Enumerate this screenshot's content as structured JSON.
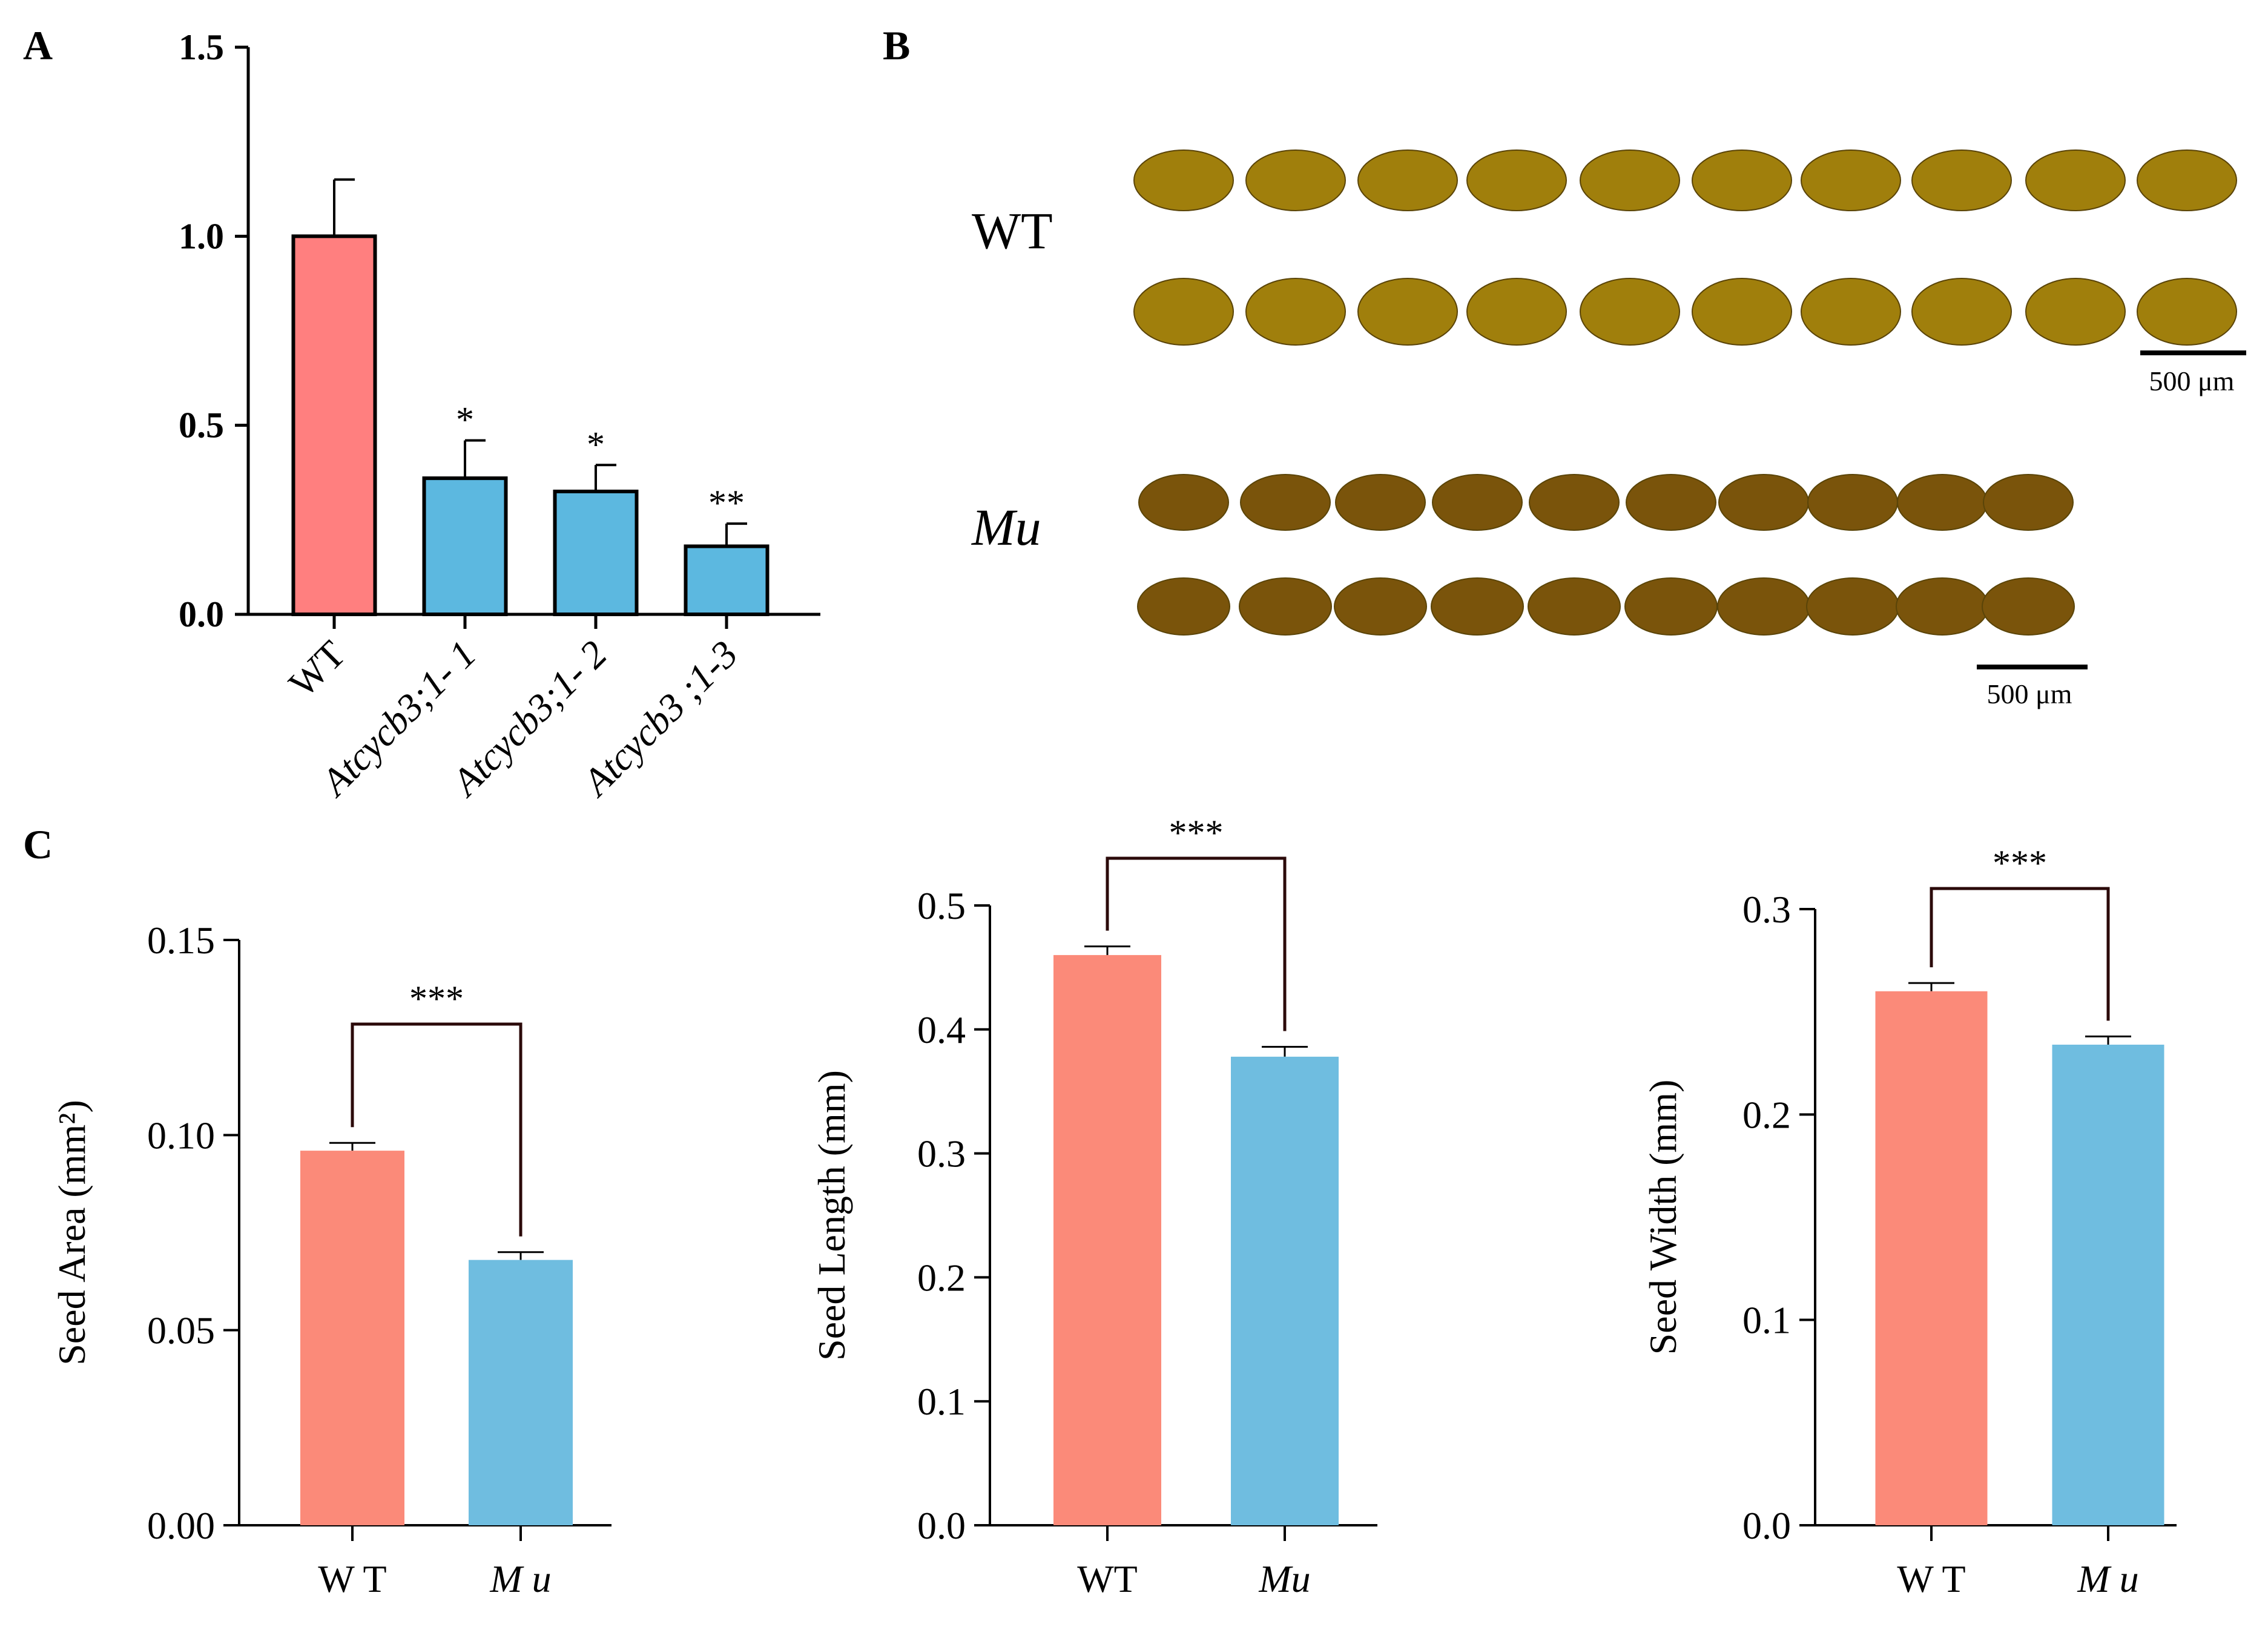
{
  "panels": {
    "a": "A",
    "b": "B",
    "c": "C"
  },
  "colors": {
    "wt_bar": "#ff7f7f",
    "mutant_bar": "#5cb8e0",
    "wt_bar_c": "#fb8a79",
    "mu_bar_c": "#6fbde0",
    "seed": "#a07f0c",
    "seed_dark": "#7a540b"
  },
  "photo": {
    "wt_label": "WT",
    "mu_label": "Mu",
    "wt_scale": "500 μm",
    "mu_scale": "500 μm"
  },
  "chart_data": [
    {
      "id": "A",
      "type": "bar",
      "title": "",
      "xlabel": "",
      "ylabel": "",
      "categories": [
        "WT",
        "Atcycb3;1- 1",
        "Atcycb3;1- 2",
        "Atcycb3 ;1-3"
      ],
      "values": [
        1.0,
        0.36,
        0.325,
        0.18
      ],
      "errors": [
        0.15,
        0.1,
        0.07,
        0.06
      ],
      "significance": [
        "",
        "*",
        "*",
        "**"
      ],
      "ylim": [
        0,
        1.5
      ],
      "yticks": [
        "0.0",
        "0.5",
        "1.0",
        "1.5"
      ],
      "bar_colors": [
        "#ff7f7f",
        "#5cb8e0",
        "#5cb8e0",
        "#5cb8e0"
      ],
      "grid": false
    },
    {
      "id": "C1",
      "type": "bar",
      "title": "",
      "xlabel": "",
      "ylabel": "Seed Area (mm²)",
      "categories": [
        "W T",
        "M u"
      ],
      "values": [
        0.096,
        0.068
      ],
      "errors": [
        0.002,
        0.002
      ],
      "comparison": "***",
      "ylim": [
        0,
        0.15
      ],
      "yticks": [
        "0.00",
        "0.05",
        "0.10",
        "0.15"
      ],
      "bar_colors": [
        "#fb8a79",
        "#6fbde0"
      ],
      "grid": false
    },
    {
      "id": "C2",
      "type": "bar",
      "title": "",
      "xlabel": "",
      "ylabel": "Seed Length (mm)",
      "categories": [
        "WT",
        "Mu"
      ],
      "values": [
        0.46,
        0.378
      ],
      "errors": [
        0.007,
        0.008
      ],
      "comparison": "***",
      "ylim": [
        0,
        0.5
      ],
      "yticks": [
        "0.0",
        "0.1",
        "0.2",
        "0.3",
        "0.4",
        "0.5"
      ],
      "bar_colors": [
        "#fb8a79",
        "#6fbde0"
      ],
      "grid": false
    },
    {
      "id": "C3",
      "type": "bar",
      "title": "",
      "xlabel": "",
      "ylabel": "Seed Width (mm)",
      "categories": [
        "W T",
        "M u"
      ],
      "values": [
        0.26,
        0.234
      ],
      "errors": [
        0.004,
        0.004
      ],
      "comparison": "***",
      "ylim": [
        0,
        0.3
      ],
      "yticks": [
        "0.0",
        "0.1",
        "0.2",
        "0.3"
      ],
      "bar_colors": [
        "#fb8a79",
        "#6fbde0"
      ],
      "grid": false
    }
  ]
}
